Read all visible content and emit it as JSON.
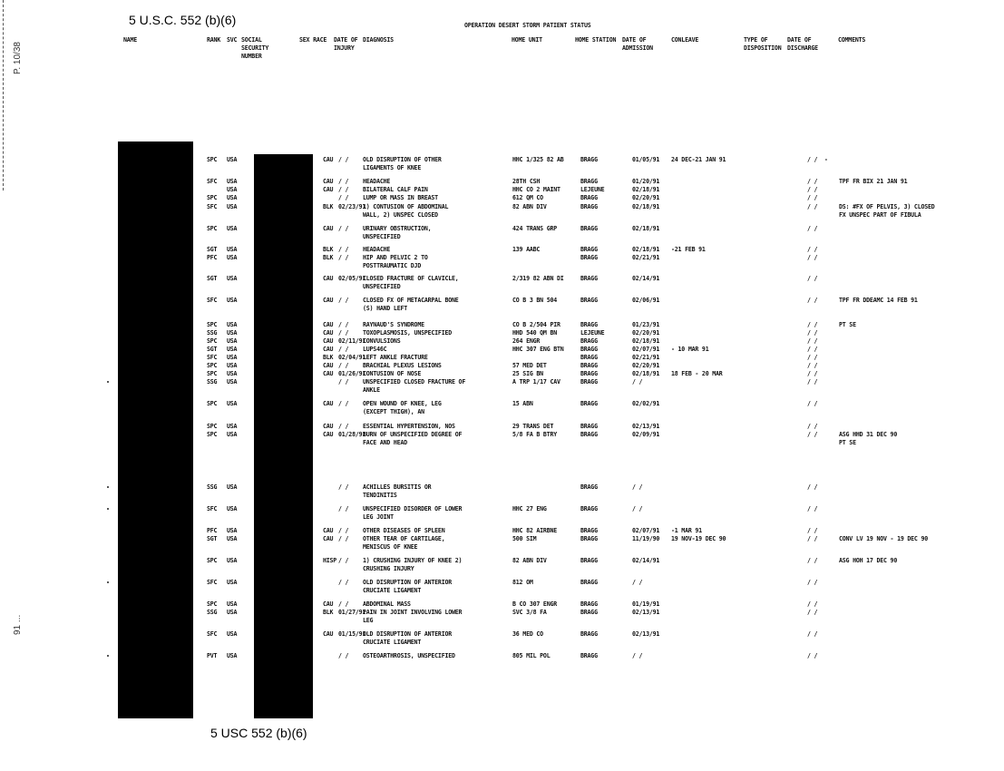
{
  "header": {
    "exemption_top": "5 U.S.C. 552 (b)(6)",
    "title": "OPERATION DESERT STORM PATIENT STATUS",
    "exemption_bottom": "5 USC 552 (b)(6)",
    "margin_page": "P. 10/38",
    "margin_bottom": "91 ..."
  },
  "columns": {
    "name": "NAME",
    "rank": "RANK",
    "svc": "SVC",
    "ssn": "SOCIAL\nSECURITY\nNUMBER",
    "sex_race": "SEX RACE",
    "date_injury": "DATE OF\nINJURY",
    "diagnosis": "DIAGNOSIS",
    "home_unit": "HOME UNIT",
    "home_station": "HOME STATION",
    "date_admission": "DATE OF\nADMISSION",
    "conv_leave": "CONLEAVE",
    "type_disposition": "TYPE OF\nDISPOSITION",
    "date_discharge": "DATE OF\nDISCHARGE",
    "comments": "COMMENTS"
  },
  "rows": [
    {
      "rank": "SPC",
      "svc": "USA",
      "race": "CAU",
      "doi": "/ /",
      "dx": "OLD DISRUPTION OF OTHER\nLIGAMENTS OF KNEE",
      "unit": "HHC 1/325 82 AB",
      "station": "BRAGG",
      "adm": "01/05/91",
      "conv": "24 DEC-21 JAN 91",
      "dd": "/ /  -",
      "comments": ""
    },
    {
      "rank": "SFC",
      "svc": "USA",
      "race": "CAU",
      "doi": "/ /",
      "dx": "HEADACHE",
      "unit": "28TH CSH",
      "station": "BRAGG",
      "adm": "01/20/91",
      "conv": "",
      "dd": "/ /",
      "comments": "TPF FR BIX 21 JAN 91"
    },
    {
      "rank": "",
      "svc": "USA",
      "race": "CAU",
      "doi": "/ /",
      "dx": "BILATERAL CALF PAIN",
      "unit": "HHC CO 2 MAINT",
      "station": "LEJEUNE",
      "adm": "02/18/91",
      "conv": "",
      "dd": "/ /",
      "comments": ""
    },
    {
      "rank": "SPC",
      "svc": "USA",
      "race": "",
      "doi": "/ /",
      "dx": "LUMP OR MASS IN BREAST",
      "unit": "612 QM CO",
      "station": "BRAGG",
      "adm": "02/20/91",
      "conv": "",
      "dd": "/ /",
      "comments": ""
    },
    {
      "rank": "SFC",
      "svc": "USA",
      "race": "BLK",
      "doi": "02/23/91",
      "dx": "1) CONTUSION OF ABDOMINAL\nWALL, 2) UNSPEC CLOSED",
      "unit": "82 ABN DIV",
      "station": "BRAGG",
      "adm": "02/18/91",
      "conv": "",
      "dd": "/ /",
      "comments": "DS: #FX OF PELVIS, 3) CLOSED\nFX UNSPEC PART OF FIBULA"
    },
    {
      "rank": "SPC",
      "svc": "USA",
      "race": "CAU",
      "doi": "/ /",
      "dx": "URINARY OBSTRUCTION,\nUNSPECIFIED",
      "unit": "424 TRANS GRP",
      "station": "BRAGG",
      "adm": "02/18/91",
      "conv": "",
      "dd": "/ /",
      "comments": ""
    },
    {
      "rank": "SGT",
      "svc": "USA",
      "race": "BLK",
      "doi": "/ /",
      "dx": "HEADACHE",
      "unit": "139 AABC",
      "station": "BRAGG",
      "adm": "02/18/91",
      "conv": "-21 FEB 91",
      "dd": "/ /",
      "comments": ""
    },
    {
      "rank": "PFC",
      "svc": "USA",
      "race": "BLK",
      "doi": "/ /",
      "dx": "HIP AND PELVIC 2 TO\nPOSTTRAUMATIC DJD",
      "unit": "",
      "station": "BRAGG",
      "adm": "02/21/91",
      "conv": "",
      "dd": "/ /",
      "comments": ""
    },
    {
      "rank": "SGT",
      "svc": "USA",
      "race": "CAU",
      "doi": "02/05/91",
      "dx": "CLOSED FRACTURE OF CLAVICLE,\nUNSPECIFIED",
      "unit": "2/319 82 ABN DI",
      "station": "BRAGG",
      "adm": "02/14/91",
      "conv": "",
      "dd": "/ /",
      "comments": ""
    },
    {
      "rank": "SFC",
      "svc": "USA",
      "race": "CAU",
      "doi": "/ /",
      "dx": "CLOSED FX OF METACARPAL BONE\n(S) HAND LEFT",
      "unit": "CO B 3 BN 504",
      "station": "BRAGG",
      "adm": "02/06/91",
      "conv": "",
      "dd": "/ /",
      "comments": "TPF FR DDEAMC 14 FEB 91"
    },
    {
      "rank": "SPC",
      "svc": "USA",
      "race": "CAU",
      "doi": "/ /",
      "dx": "RAYNAUD'S SYNDROME",
      "unit": "CO B 2/504 PIR",
      "station": "BRAGG",
      "adm": "01/23/91",
      "conv": "",
      "dd": "/ /",
      "comments": "PT SE"
    },
    {
      "rank": "SSG",
      "svc": "USA",
      "race": "CAU",
      "doi": "/ /",
      "dx": "TOXOPLASMOSIS, UNSPECIFIED",
      "unit": "HHD 540 QM BN",
      "station": "LEJEUNE",
      "adm": "02/20/91",
      "conv": "",
      "dd": "/ /",
      "comments": ""
    },
    {
      "rank": "SPC",
      "svc": "USA",
      "race": "CAU",
      "doi": "02/11/91",
      "dx": "CONVULSIONS",
      "unit": "264 ENGR",
      "station": "BRAGG",
      "adm": "02/18/91",
      "conv": "",
      "dd": "/ /",
      "comments": ""
    },
    {
      "rank": "SGT",
      "svc": "USA",
      "race": "CAU",
      "doi": "/ /",
      "dx": "LUPS46C",
      "unit": "HHC 307 ENG BTN",
      "station": "BRAGG",
      "adm": "02/07/91",
      "conv": "- 10 MAR 91",
      "dd": "/ /",
      "comments": ""
    },
    {
      "rank": "SFC",
      "svc": "USA",
      "race": "BLK",
      "doi": "02/04/91",
      "dx": "LEFT ANKLE FRACTURE",
      "unit": "",
      "station": "BRAGG",
      "adm": "02/21/91",
      "conv": "",
      "dd": "/ /",
      "comments": ""
    },
    {
      "rank": "SPC",
      "svc": "USA",
      "race": "CAU",
      "doi": "/ /",
      "dx": "BRACHIAL PLEXUS LESIONS",
      "unit": "57 MED DET",
      "station": "BRAGG",
      "adm": "02/20/91",
      "conv": "",
      "dd": "/ /",
      "comments": ""
    },
    {
      "rank": "SPC",
      "svc": "USA",
      "race": "CAU",
      "doi": "01/26/91",
      "dx": "CONTUSION OF NOSE",
      "unit": "25 SIG BN",
      "station": "BRAGG",
      "adm": "02/18/91",
      "conv": "18 FEB - 20 MAR",
      "dd": "/ /",
      "comments": ""
    },
    {
      "rank": "SSG",
      "svc": "USA",
      "race": "",
      "doi": "/ /",
      "dx": "UNSPECIFIED CLOSED FRACTURE OF\nANKLE",
      "unit": "A TRP 1/17 CAV",
      "station": "BRAGG",
      "adm": "/ /",
      "conv": "",
      "dd": "/ /",
      "comments": ""
    },
    {
      "rank": "SPC",
      "svc": "USA",
      "race": "CAU",
      "doi": "/ /",
      "dx": "OPEN WOUND OF KNEE, LEG\n(EXCEPT THIGH), AN",
      "unit": "15 ABN",
      "station": "BRAGG",
      "adm": "02/02/91",
      "conv": "",
      "dd": "/ /",
      "comments": ""
    },
    {
      "rank": "SPC",
      "svc": "USA",
      "race": "CAU",
      "doi": "/ /",
      "dx": "ESSENTIAL HYPERTENSION, NOS",
      "unit": "29 TRANS DET",
      "station": "BRAGG",
      "adm": "02/13/91",
      "conv": "",
      "dd": "/ /",
      "comments": ""
    },
    {
      "rank": "SPC",
      "svc": "USA",
      "race": "CAU",
      "doi": "01/28/91",
      "dx": "BURN OF UNSPECIFIED DEGREE OF\nFACE AND HEAD",
      "unit": "5/8 FA B BTRY",
      "station": "BRAGG",
      "adm": "02/09/91",
      "conv": "",
      "dd": "/ /",
      "comments": "ASG HHD 31 DEC 90\nPT SE"
    },
    {
      "rank": "SSG",
      "svc": "USA",
      "race": "",
      "doi": "/ /",
      "dx": "ACHILLES BURSITIS OR\nTENDINITIS",
      "unit": "",
      "station": "BRAGG",
      "adm": "/ /",
      "conv": "",
      "dd": "/ /",
      "comments": ""
    },
    {
      "rank": "SFC",
      "svc": "USA",
      "race": "",
      "doi": "/ /",
      "dx": "UNSPECIFIED DISORDER OF LOWER\nLEG JOINT",
      "unit": "HHC 27 ENG",
      "station": "BRAGG",
      "adm": "/ /",
      "conv": "",
      "dd": "/ /",
      "comments": ""
    },
    {
      "rank": "PFC",
      "svc": "USA",
      "race": "CAU",
      "doi": "/ /",
      "dx": "OTHER DISEASES OF SPLEEN",
      "unit": "HHC 82 AIRBNE",
      "station": "BRAGG",
      "adm": "02/07/91",
      "conv": "-1 MAR 91",
      "dd": "/ /",
      "comments": ""
    },
    {
      "rank": "SGT",
      "svc": "USA",
      "race": "CAU",
      "doi": "/ /",
      "dx": "OTHER TEAR OF CARTILAGE,\nMENISCUS OF KNEE",
      "unit": "500 SIM",
      "station": "BRAGG",
      "adm": "11/19/90",
      "conv": "19 NOV-19 DEC 90",
      "dd": "/ /",
      "comments": "CONV LV 19 NOV - 19 DEC 90"
    },
    {
      "rank": "SPC",
      "svc": "USA",
      "race": "HISP",
      "doi": "/ /",
      "dx": "1) CRUSHING INJURY OF KNEE 2)\nCRUSHING INJURY",
      "unit": "82 ABN DIV",
      "station": "BRAGG",
      "adm": "02/14/91",
      "conv": "",
      "dd": "/ /",
      "comments": "ASG HOH 17 DEC 90"
    },
    {
      "rank": "SFC",
      "svc": "USA",
      "race": "",
      "doi": "/ /",
      "dx": "OLD DISRUPTION OF ANTERIOR\nCRUCIATE LIGAMENT",
      "unit": "812 OM",
      "station": "BRAGG",
      "adm": "/ /",
      "conv": "",
      "dd": "/ /",
      "comments": ""
    },
    {
      "rank": "SPC",
      "svc": "USA",
      "race": "CAU",
      "doi": "/ /",
      "dx": "ABDOMINAL MASS",
      "unit": "B CO 307 ENGR",
      "station": "BRAGG",
      "adm": "01/19/91",
      "conv": "",
      "dd": "/ /",
      "comments": ""
    },
    {
      "rank": "SSG",
      "svc": "USA",
      "race": "BLK",
      "doi": "01/27/91",
      "dx": "PAIN IN JOINT INVOLVING LOWER\nLEG",
      "unit": "SVC 3/8 FA",
      "station": "BRAGG",
      "adm": "02/13/91",
      "conv": "",
      "dd": "/ /",
      "comments": ""
    },
    {
      "rank": "SFC",
      "svc": "USA",
      "race": "CAU",
      "doi": "01/15/91",
      "dx": "OLD DISRUPTION OF ANTERIOR\nCRUCIATE LIGAMENT",
      "unit": "36 MED CO",
      "station": "BRAGG",
      "adm": "02/13/91",
      "conv": "",
      "dd": "/ /",
      "comments": ""
    },
    {
      "rank": "PVT",
      "svc": "USA",
      "race": "",
      "doi": "/ /",
      "dx": "OSTEOARTHROSIS, UNSPECIFIED",
      "unit": "805 MIL POL",
      "station": "BRAGG",
      "adm": "/ /",
      "conv": "",
      "dd": "/ /",
      "comments": ""
    }
  ]
}
